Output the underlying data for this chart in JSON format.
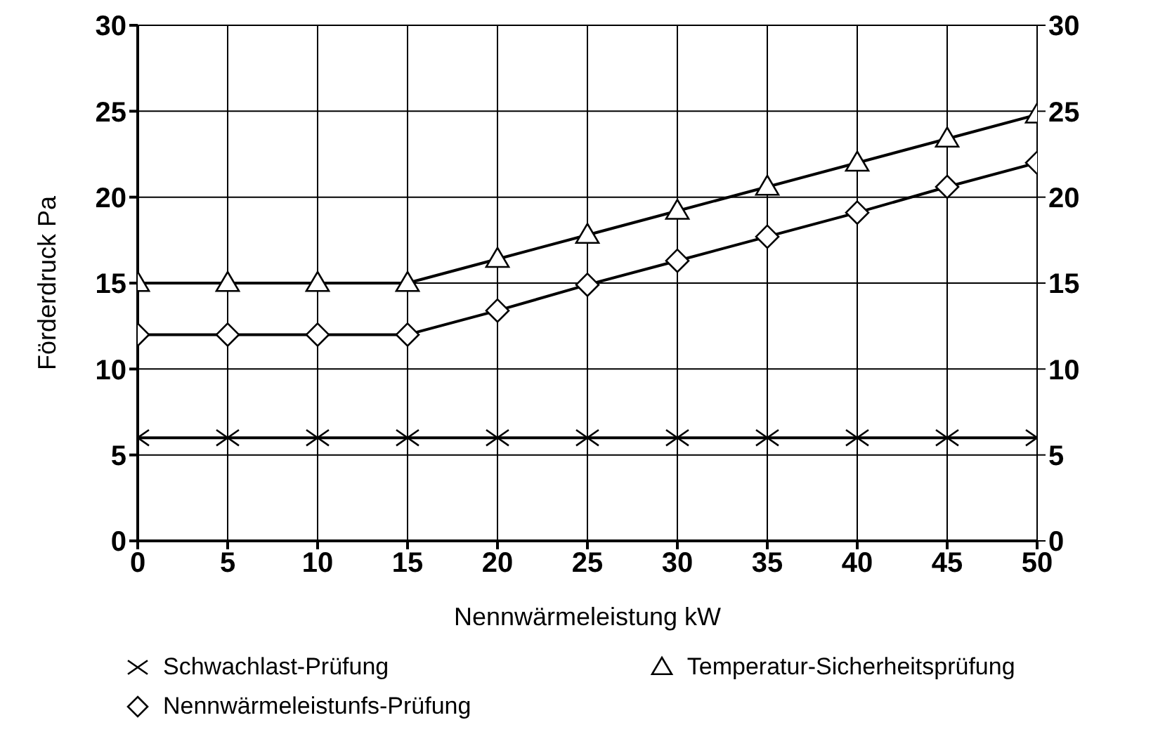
{
  "chart_data": {
    "type": "line",
    "xlabel": "Nennwärmeleistung kW",
    "ylabel": "Förderdruck Pa",
    "x": [
      0,
      5,
      10,
      15,
      20,
      25,
      30,
      35,
      40,
      45,
      50
    ],
    "series": [
      {
        "name": "Schwachlast-Prüfung",
        "color": "#000000",
        "marker": "cross",
        "values": [
          6,
          6,
          6,
          6,
          6,
          6,
          6,
          6,
          6,
          6,
          6
        ]
      },
      {
        "name": "Temperatur-Sicherheitsprüfung",
        "color": "#000000",
        "marker": "triangle",
        "values": [
          15,
          15,
          15,
          15,
          16.4,
          17.8,
          19.2,
          20.6,
          22,
          23.4,
          24.8
        ]
      },
      {
        "name": "Nennwärmeleistunfs-Prüfung",
        "color": "#000000",
        "marker": "diamond",
        "values": [
          12,
          12,
          12,
          12,
          13.4,
          14.9,
          16.3,
          17.7,
          19.1,
          20.6,
          22
        ]
      }
    ],
    "xlim": [
      0,
      50
    ],
    "xticks": [
      0,
      5,
      10,
      15,
      20,
      25,
      30,
      35,
      40,
      45,
      50
    ],
    "ylim": [
      0,
      30
    ],
    "yticks": [
      0,
      5,
      10,
      15,
      20,
      25,
      30
    ],
    "y2lim": [
      0,
      30
    ],
    "y2ticks": [
      0,
      5,
      10,
      15,
      20,
      25,
      30
    ],
    "grid": true,
    "legend": "bottom",
    "line_style": "solid"
  }
}
